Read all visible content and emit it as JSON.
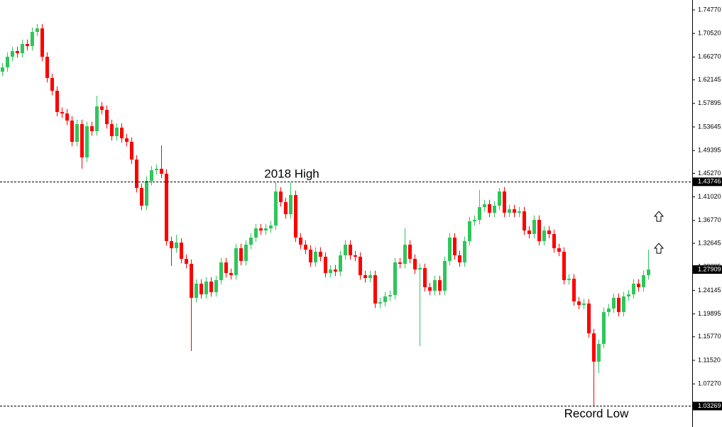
{
  "chart_data": {
    "type": "candlestick",
    "up_color": "#2fc65a",
    "down_color": "#ff0000",
    "ylim": [
      1.0,
      1.7656
    ],
    "yticks": [
      {
        "value": 1.7477,
        "label": "1.74770"
      },
      {
        "value": 1.7052,
        "label": "1.70520"
      },
      {
        "value": 1.6627,
        "label": "1.66270"
      },
      {
        "value": 1.62145,
        "label": "1.62145"
      },
      {
        "value": 1.57895,
        "label": "1.57895"
      },
      {
        "value": 1.53645,
        "label": "1.53645"
      },
      {
        "value": 1.49395,
        "label": "1.49395"
      },
      {
        "value": 1.4527,
        "label": "1.45270"
      },
      {
        "value": 1.4102,
        "label": "1.41020"
      },
      {
        "value": 1.3677,
        "label": "1.36770"
      },
      {
        "value": 1.32645,
        "label": "1.32645"
      },
      {
        "value": 1.28395,
        "label": "1.28395"
      },
      {
        "value": 1.24145,
        "label": "1.24145"
      },
      {
        "value": 1.19895,
        "label": "1.19895"
      },
      {
        "value": 1.1577,
        "label": "1.15770"
      },
      {
        "value": 1.1152,
        "label": "1.11520"
      },
      {
        "value": 1.0727,
        "label": "1.07270"
      }
    ],
    "levels": [
      1.43746,
      1.03269
    ],
    "current_price": 1.27909,
    "annotations": [
      "2018 High",
      "Record Low"
    ],
    "open": [
      1.636,
      1.644,
      1.6632,
      1.6734,
      1.6696,
      1.6862,
      1.6824,
      1.708,
      1.7144,
      1.6632,
      1.6248,
      1.6018,
      1.5634,
      1.5608,
      1.548,
      1.5096,
      1.5416,
      1.4814,
      1.5378,
      1.5288,
      1.5736,
      1.5672,
      1.5416,
      1.5198,
      1.5352,
      1.516,
      1.5096,
      1.4776,
      1.4264,
      1.3944,
      1.4392,
      1.4584,
      1.461,
      1.452,
      1.3304,
      1.3176,
      1.3278,
      1.2984,
      1.2894,
      1.228,
      1.2536,
      1.2344,
      1.2574,
      1.2382,
      1.26,
      1.292,
      1.2728,
      1.269,
      1.3176,
      1.2946,
      1.324,
      1.3368,
      1.3534,
      1.3496,
      1.3534,
      1.3586,
      1.42,
      1.4008,
      1.379,
      1.4136,
      1.3368,
      1.324,
      1.315,
      1.292,
      1.3112,
      1.3022,
      1.2728,
      1.2792,
      1.2754,
      1.3048,
      1.324,
      1.3048,
      1.3022,
      1.269,
      1.2638,
      1.269,
      1.2178,
      1.2203,
      1.2306,
      1.2331,
      1.292,
      1.2894,
      1.324,
      1.2984,
      1.2792,
      1.2818,
      1.2472,
      1.2408,
      1.26,
      1.2408,
      1.2946,
      1.3368,
      1.3048,
      1.292,
      1.3304,
      1.3662,
      1.3688,
      1.3918,
      1.397,
      1.3816,
      1.3944,
      1.42,
      1.3816,
      1.388,
      1.3816,
      1.3842,
      1.3496,
      1.3432,
      1.3688,
      1.3304,
      1.3496,
      1.3432,
      1.3176,
      1.3112,
      1.26,
      1.2626,
      1.2216,
      1.2152,
      1.2178,
      1.164,
      1.1128,
      1.1448,
      1.2024,
      1.2088,
      1.228,
      1.2024,
      1.2306,
      1.2344,
      1.2536,
      1.2472,
      1.269
    ],
    "high": [
      1.652,
      1.6712,
      1.6814,
      1.6814,
      1.6942,
      1.6942,
      1.716,
      1.7224,
      1.7224,
      1.6712,
      1.6328,
      1.6098,
      1.5714,
      1.5688,
      1.556,
      1.5496,
      1.5496,
      1.5458,
      1.5458,
      1.5928,
      1.5816,
      1.5752,
      1.5496,
      1.5432,
      1.5432,
      1.524,
      1.5176,
      1.4856,
      1.4344,
      1.4472,
      1.4664,
      1.469,
      1.5032,
      1.46,
      1.3384,
      1.342,
      1.3358,
      1.3064,
      1.2974,
      1.2616,
      1.2616,
      1.2654,
      1.2654,
      1.268,
      1.3,
      1.3,
      1.2808,
      1.3256,
      1.3256,
      1.332,
      1.3448,
      1.3614,
      1.3614,
      1.3614,
      1.3666,
      1.4366,
      1.428,
      1.4088,
      1.4366,
      1.4216,
      1.3448,
      1.332,
      1.323,
      1.3192,
      1.3192,
      1.3102,
      1.2872,
      1.2872,
      1.3128,
      1.332,
      1.332,
      1.3128,
      1.3102,
      1.277,
      1.277,
      1.277,
      1.2283,
      1.2386,
      1.2411,
      1.3,
      1.3,
      1.3536,
      1.332,
      1.3064,
      1.2898,
      1.2898,
      1.2552,
      1.268,
      1.268,
      1.3026,
      1.3448,
      1.3448,
      1.3128,
      1.3384,
      1.3742,
      1.3768,
      1.4226,
      1.405,
      1.405,
      1.4024,
      1.4264,
      1.428,
      1.396,
      1.396,
      1.3922,
      1.3922,
      1.3576,
      1.3768,
      1.3768,
      1.3576,
      1.3576,
      1.3512,
      1.3256,
      1.3192,
      1.2706,
      1.2706,
      1.2296,
      1.2258,
      1.2258,
      1.172,
      1.1528,
      1.2104,
      1.2168,
      1.236,
      1.236,
      1.2386,
      1.2424,
      1.2616,
      1.2616,
      1.277,
      1.315
    ],
    "low": [
      1.628,
      1.636,
      1.6552,
      1.6616,
      1.6616,
      1.6744,
      1.6744,
      1.7,
      1.6552,
      1.6168,
      1.5938,
      1.5554,
      1.5528,
      1.54,
      1.5016,
      1.5016,
      1.461,
      1.4734,
      1.5208,
      1.5208,
      1.5592,
      1.5336,
      1.5118,
      1.5118,
      1.508,
      1.5016,
      1.4696,
      1.4184,
      1.3864,
      1.3864,
      1.4312,
      1.4504,
      1.444,
      1.3224,
      1.2856,
      1.3096,
      1.2904,
      1.2814,
      1.132,
      1.22,
      1.2264,
      1.2264,
      1.2302,
      1.2302,
      1.252,
      1.2648,
      1.261,
      1.261,
      1.2866,
      1.2866,
      1.316,
      1.3288,
      1.3416,
      1.3416,
      1.3454,
      1.3506,
      1.3928,
      1.371,
      1.371,
      1.3288,
      1.316,
      1.307,
      1.284,
      1.284,
      1.2942,
      1.2648,
      1.2648,
      1.2674,
      1.2674,
      1.2968,
      1.2968,
      1.2942,
      1.261,
      1.2558,
      1.2558,
      1.2098,
      1.2098,
      1.2123,
      1.2226,
      1.2251,
      1.2814,
      1.2814,
      1.2904,
      1.2712,
      1.141,
      1.2392,
      1.2328,
      1.2328,
      1.2328,
      1.2328,
      1.2866,
      1.2968,
      1.284,
      1.284,
      1.3224,
      1.3582,
      1.3608,
      1.3838,
      1.3736,
      1.3736,
      1.3864,
      1.3736,
      1.3736,
      1.3736,
      1.3736,
      1.3416,
      1.3352,
      1.3352,
      1.3224,
      1.3224,
      1.3352,
      1.3096,
      1.3032,
      1.252,
      1.252,
      1.2136,
      1.2072,
      1.2072,
      1.156,
      1.0334,
      1.092,
      1.1368,
      1.1944,
      1.2008,
      1.1944,
      1.1944,
      1.2226,
      1.2264,
      1.2392,
      1.2392,
      1.261
    ],
    "close": [
      1.644,
      1.6632,
      1.6734,
      1.6696,
      1.6862,
      1.6824,
      1.708,
      1.7144,
      1.6632,
      1.6248,
      1.6018,
      1.5634,
      1.5608,
      1.548,
      1.5096,
      1.5416,
      1.4814,
      1.5378,
      1.5288,
      1.5736,
      1.5672,
      1.5416,
      1.5198,
      1.5352,
      1.516,
      1.5096,
      1.4776,
      1.4264,
      1.3944,
      1.4392,
      1.4584,
      1.461,
      1.452,
      1.3304,
      1.3176,
      1.3278,
      1.2984,
      1.2894,
      1.228,
      1.2536,
      1.2344,
      1.2574,
      1.2382,
      1.26,
      1.292,
      1.2728,
      1.269,
      1.3176,
      1.2946,
      1.324,
      1.3368,
      1.3534,
      1.3496,
      1.3534,
      1.3586,
      1.42,
      1.4008,
      1.379,
      1.4136,
      1.3368,
      1.324,
      1.315,
      1.292,
      1.3112,
      1.3022,
      1.2728,
      1.2792,
      1.2754,
      1.3048,
      1.324,
      1.3048,
      1.3022,
      1.269,
      1.2638,
      1.269,
      1.2178,
      1.2203,
      1.2306,
      1.2331,
      1.292,
      1.2894,
      1.324,
      1.2984,
      1.2792,
      1.2818,
      1.2472,
      1.2408,
      1.26,
      1.2408,
      1.2946,
      1.3368,
      1.3048,
      1.292,
      1.3304,
      1.3662,
      1.3688,
      1.3918,
      1.397,
      1.3816,
      1.3944,
      1.42,
      1.3816,
      1.388,
      1.3816,
      1.3842,
      1.3496,
      1.3432,
      1.3688,
      1.3304,
      1.3496,
      1.3432,
      1.3176,
      1.3112,
      1.26,
      1.2626,
      1.2216,
      1.2152,
      1.2178,
      1.164,
      1.1128,
      1.1448,
      1.2024,
      1.2088,
      1.228,
      1.2024,
      1.2306,
      1.2344,
      1.2536,
      1.2472,
      1.269,
      1.2791
    ]
  }
}
